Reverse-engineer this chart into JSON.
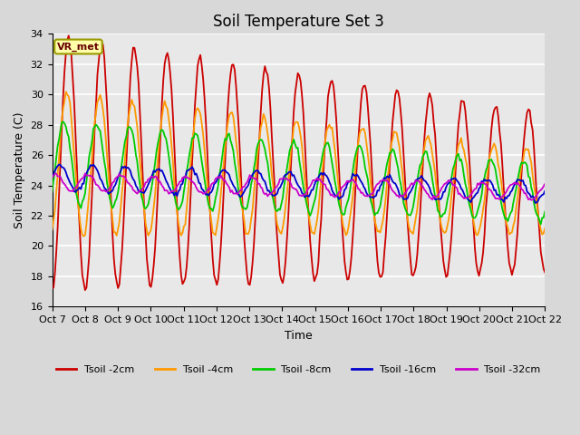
{
  "title": "Soil Temperature Set 3",
  "xlabel": "Time",
  "ylabel": "Soil Temperature (C)",
  "ylim": [
    16,
    34
  ],
  "yticks": [
    16,
    18,
    20,
    22,
    24,
    26,
    28,
    30,
    32,
    34
  ],
  "xtick_labels": [
    "Oct 7",
    "Oct 8",
    "Oct 9",
    "Oct 10",
    "Oct 11",
    "Oct 12",
    "Oct 13",
    "Oct 14",
    "Oct 15",
    "Oct 16",
    "Oct 17",
    "Oct 18",
    "Oct 19",
    "Oct 20",
    "Oct 21",
    "Oct 22"
  ],
  "line_colors": {
    "2cm": "#cc0000",
    "4cm": "#ff9900",
    "8cm": "#00cc00",
    "16cm": "#0000cc",
    "32cm": "#cc00cc"
  },
  "line_labels": {
    "2cm": "Tsoil -2cm",
    "4cm": "Tsoil -4cm",
    "8cm": "Tsoil -8cm",
    "16cm": "Tsoil -16cm",
    "32cm": "Tsoil -32cm"
  },
  "legend_label": "VR_met",
  "plot_bg_color": "#e8e8e8",
  "grid_color": "#ffffff",
  "title_fontsize": 12,
  "axis_label_fontsize": 9,
  "tick_fontsize": 8
}
